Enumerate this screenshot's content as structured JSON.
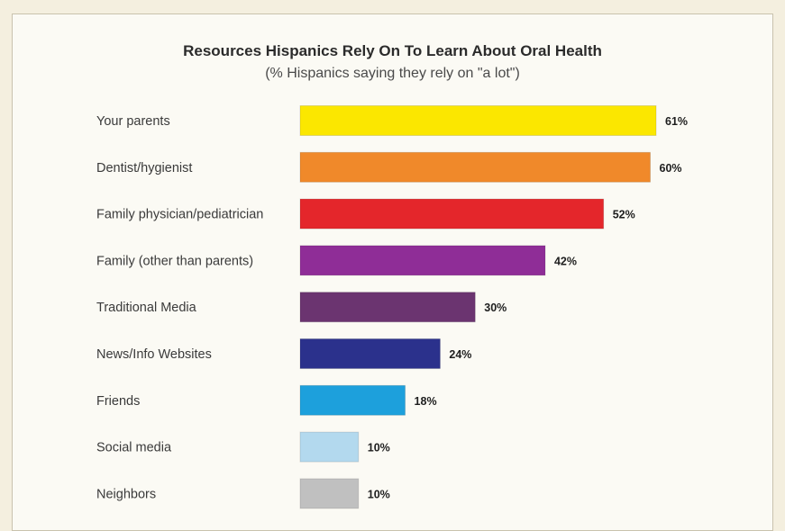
{
  "chart_data": {
    "type": "bar",
    "orientation": "horizontal",
    "title": "Resources Hispanics Rely On To Learn About Oral Health",
    "subtitle": "(% Hispanics saying they rely on \"a lot\")",
    "categories": [
      "Your parents",
      "Dentist/hygienist",
      "Family physician/pediatrician",
      "Family (other than parents)",
      "Traditional Media",
      "News/Info Websites",
      "Friends",
      "Social media",
      "Neighbors"
    ],
    "values": [
      61,
      60,
      52,
      42,
      30,
      24,
      18,
      10,
      10
    ],
    "value_labels": [
      "61%",
      "60%",
      "52%",
      "42%",
      "30%",
      "24%",
      "18%",
      "10%",
      "10%"
    ],
    "colors": [
      "#fbe700",
      "#f0892a",
      "#e4262b",
      "#8f2d97",
      "#6b3470",
      "#2b318c",
      "#1da0dc",
      "#b3d9ee",
      "#c0c0c0"
    ],
    "unit": "%",
    "xlim": [
      0,
      61
    ],
    "grid": false,
    "legend": false
  }
}
